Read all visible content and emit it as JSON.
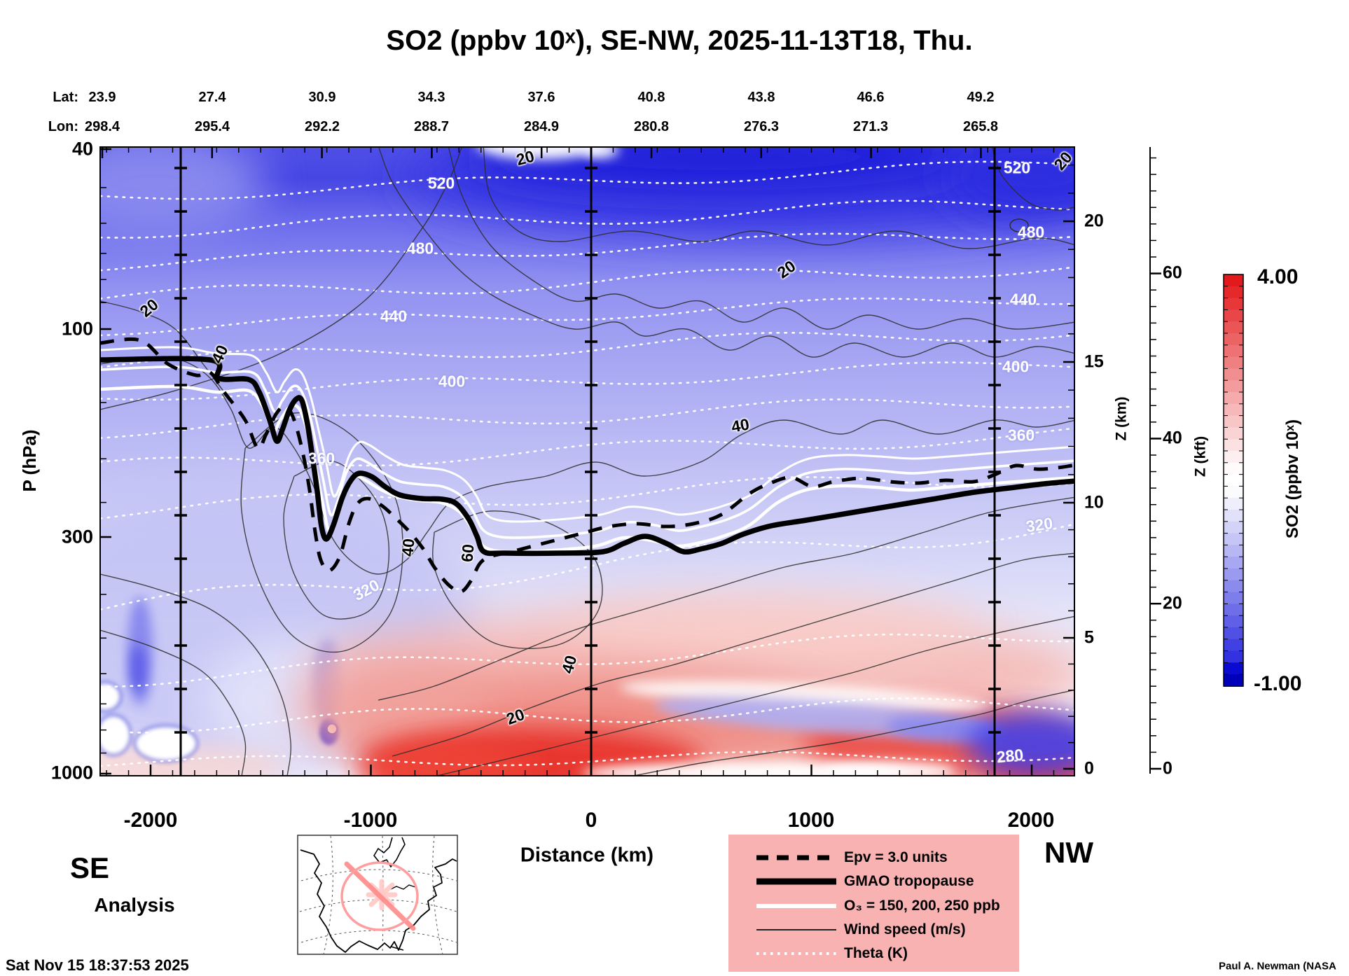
{
  "title": "SO2 (ppbv 10ˣ), SE-NW, 2025-11-13T18, Thu.",
  "top_axis": {
    "lat_prefix": "Lat:",
    "lon_prefix": "Lon:",
    "lat": [
      "23.9",
      "27.4",
      "30.9",
      "34.3",
      "37.6",
      "40.8",
      "43.8",
      "46.6",
      "49.2"
    ],
    "lon": [
      "298.4",
      "295.4",
      "292.2",
      "288.7",
      "284.9",
      "280.8",
      "276.3",
      "271.3",
      "265.8"
    ]
  },
  "left_axis": {
    "label": "P (hPa)",
    "ticks": [
      "40",
      "100",
      "300",
      "1000"
    ]
  },
  "right_axis_km": {
    "label": "Z (km)",
    "ticks": [
      "20",
      "15",
      "10",
      "5",
      "0"
    ]
  },
  "right_axis_kft": {
    "label": "Z (kft)",
    "ticks": [
      "60",
      "40",
      "20",
      "0"
    ]
  },
  "bottom_axis": {
    "label": "Distance (km)",
    "ticks": [
      "-2000",
      "-1000",
      "0",
      "1000",
      "2000"
    ]
  },
  "endpoints": {
    "start": "SE",
    "end": "NW"
  },
  "analysis_label": "Analysis",
  "timestamp": "Sat Nov 15 18:37:53 2025",
  "credit": "Paul A. Newman (NASA",
  "colorbar": {
    "max": "4.00",
    "min": "-1.00",
    "label": "SO2 (ppbv 10ˣ)"
  },
  "legend": {
    "items": [
      {
        "label": "Epv = 3.0 units",
        "style": "dashed-black"
      },
      {
        "label": "GMAO tropopause",
        "style": "thick-black"
      },
      {
        "label": "O₃ = 150, 200, 250 ppb",
        "style": "thick-white"
      },
      {
        "label": "Wind speed (m/s)",
        "style": "thin-black"
      },
      {
        "label": "Theta (K)",
        "style": "dotted-white"
      }
    ]
  },
  "contour_labels": {
    "theta": [
      "520",
      "480",
      "440",
      "400",
      "360",
      "320",
      "520",
      "480",
      "440",
      "400",
      "360",
      "320",
      "280"
    ],
    "wind": [
      "20",
      "40",
      "20",
      "20",
      "40",
      "40",
      "60",
      "40",
      "20",
      "20"
    ]
  },
  "chart_data": {
    "type": "heatmap",
    "title": "SO2 (ppbv 10^x), SE-NW, 2025-11-13T18, Thu.",
    "x_axis": {
      "label": "Distance (km)",
      "range": [
        -2230,
        2200
      ],
      "ticks": [
        -2000,
        -1000,
        0,
        1000,
        2000
      ]
    },
    "y_axis_left": {
      "label": "P (hPa)",
      "scale": "log",
      "ticks": [
        40,
        100,
        300,
        1000
      ]
    },
    "y_axis_right": {
      "label": "Z (km)",
      "ticks": [
        0,
        5,
        10,
        15,
        20
      ]
    },
    "y_axis_far_right": {
      "label": "Z (kft)",
      "ticks": [
        0,
        20,
        40,
        60
      ]
    },
    "color_scale": {
      "label": "SO2 (ppbv 10^x)",
      "min": -1.0,
      "max": 4.0,
      "palette": "blue-white-red"
    },
    "transect_waypoints": {
      "lat": [
        23.9,
        27.4,
        30.9,
        34.3,
        37.6,
        40.8,
        43.8,
        46.6,
        49.2
      ],
      "lon": [
        298.4,
        295.4,
        292.2,
        288.7,
        284.9,
        280.8,
        276.3,
        271.3,
        265.8
      ]
    },
    "overlays": {
      "epv_units": 3.0,
      "tropopause": "GMAO",
      "o3_ppb": [
        150,
        200,
        250
      ],
      "wind_speed_labeled_ms": [
        20,
        40,
        60
      ],
      "theta_labeled_K": [
        280,
        320,
        360,
        400,
        440,
        480,
        520
      ]
    },
    "tropopause_profile": [
      {
        "distance_km": -2230,
        "p_hPa": 120
      },
      {
        "distance_km": -1900,
        "p_hPa": 125
      },
      {
        "distance_km": -1450,
        "p_hPa": 165
      },
      {
        "distance_km": -1270,
        "p_hPa": 300
      },
      {
        "distance_km": -1150,
        "p_hPa": 215
      },
      {
        "distance_km": -900,
        "p_hPa": 260
      },
      {
        "distance_km": -450,
        "p_hPa": 320
      },
      {
        "distance_km": 0,
        "p_hPa": 320
      },
      {
        "distance_km": 500,
        "p_hPa": 300
      },
      {
        "distance_km": 1000,
        "p_hPa": 280
      },
      {
        "distance_km": 1600,
        "p_hPa": 255
      },
      {
        "distance_km": 2200,
        "p_hPa": 225
      }
    ],
    "field_summary": "log10 SO2: -1 to 0 (blue) stratosphere; ~0 (white) mid-troposphere; +1 to +4 (red) boundary layer below ~4 km with maxima near the surface from -500 km to +2200 km along track"
  }
}
